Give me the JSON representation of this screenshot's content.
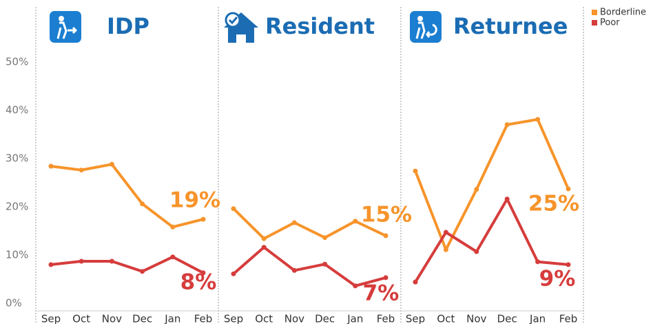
{
  "chart_data": [
    {
      "type": "line",
      "title": "IDP",
      "categories": [
        "Sep",
        "Oct",
        "Nov",
        "Dec",
        "Jan",
        "Feb"
      ],
      "ylim": [
        0,
        50
      ],
      "yticks": [
        {
          "value": 0,
          "label": "0%"
        },
        {
          "value": 10,
          "label": "10%"
        },
        {
          "value": 20,
          "label": "20%"
        },
        {
          "value": 30,
          "label": "30%"
        },
        {
          "value": 40,
          "label": "40%"
        },
        {
          "value": 50,
          "label": "50%"
        }
      ],
      "series": [
        {
          "name": "Borderline",
          "color": "#f7942b",
          "values": [
            29.7,
            28.9,
            30.1,
            21.9,
            17.1,
            18.7
          ],
          "value_labels": [
            null,
            null,
            null,
            null,
            null,
            "19%"
          ]
        },
        {
          "name": "Poor",
          "color": "#d63c3c",
          "values": [
            9.3,
            10.0,
            10.0,
            7.9,
            10.9,
            7.6
          ],
          "value_labels": [
            null,
            null,
            null,
            null,
            null,
            "8%"
          ]
        }
      ]
    },
    {
      "type": "line",
      "title": "Resident",
      "categories": [
        "Sep",
        "Oct",
        "Nov",
        "Dec",
        "Jan",
        "Feb"
      ],
      "ylim": [
        0,
        50
      ],
      "series": [
        {
          "color": "#f7942b",
          "values": [
            20.9,
            14.7,
            18.0,
            14.9,
            18.3,
            15.3
          ],
          "value_labels": [
            null,
            null,
            null,
            null,
            null,
            "15%"
          ]
        },
        {
          "color": "#d63c3c",
          "values": [
            7.4,
            12.9,
            8.1,
            9.4,
            4.9,
            6.6
          ],
          "value_labels": [
            null,
            null,
            null,
            null,
            null,
            "7%"
          ]
        }
      ]
    },
    {
      "type": "line",
      "title": "Returnee",
      "categories": [
        "Sep",
        "Oct",
        "Nov",
        "Dec",
        "Jan",
        "Feb"
      ],
      "ylim": [
        0,
        50
      ],
      "series": [
        {
          "color": "#f7942b",
          "values": [
            28.7,
            12.4,
            24.9,
            38.3,
            39.4,
            25.0
          ],
          "value_labels": [
            null,
            null,
            null,
            null,
            null,
            "25%"
          ]
        },
        {
          "color": "#d63c3c",
          "values": [
            5.7,
            16.0,
            12.0,
            22.9,
            9.9,
            9.3
          ],
          "value_labels": [
            null,
            null,
            null,
            null,
            null,
            "9%"
          ]
        }
      ]
    }
  ]
}
